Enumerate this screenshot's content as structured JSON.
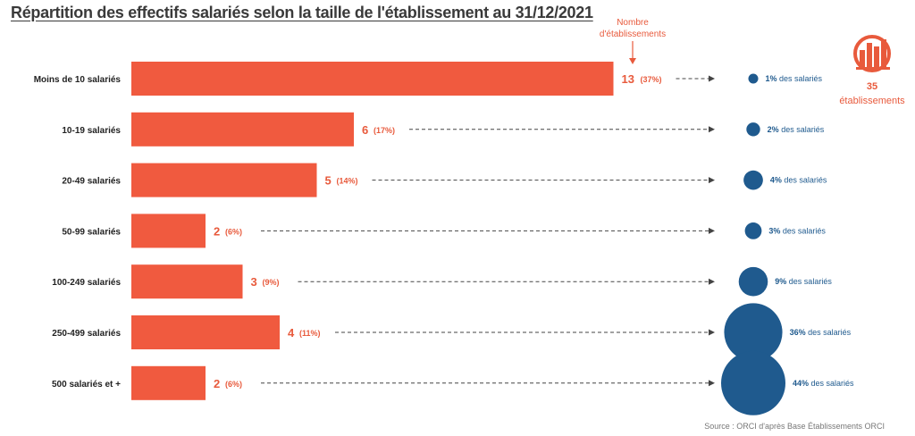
{
  "title": "Répartition des effectifs salariés selon la taille de l'établissement au 31/12/2021",
  "source": "Source : ORCI d'après Base Établissements ORCI",
  "annotation": [
    "Nombre",
    "d'établissements"
  ],
  "total": {
    "value": "35",
    "label": "établissements"
  },
  "share_suffix": " des salariés",
  "colors": {
    "bar": "#f05a3f",
    "bubble": "#1f5a8e",
    "accent": "#e85a3c"
  },
  "icon": "building-chart-icon",
  "chart_data": {
    "type": "bar",
    "orientation": "horizontal",
    "categories": [
      "Moins de 10 salariés",
      "10-19 salariés",
      "20-49 salariés",
      "50-99 salariés",
      "100-249 salariés",
      "250-499 salariés",
      "500 salariés et +"
    ],
    "values": [
      13,
      6,
      5,
      2,
      3,
      4,
      2
    ],
    "value_pct_labels": [
      "(37%)",
      "(17%)",
      "(14%)",
      "(6%)",
      "(9%)",
      "(11%)",
      "(6%)"
    ],
    "employee_share": [
      1,
      2,
      4,
      3,
      9,
      36,
      44
    ],
    "employee_share_labels": [
      "1%",
      "2%",
      "4%",
      "3%",
      "9%",
      "36%",
      "44%"
    ]
  }
}
